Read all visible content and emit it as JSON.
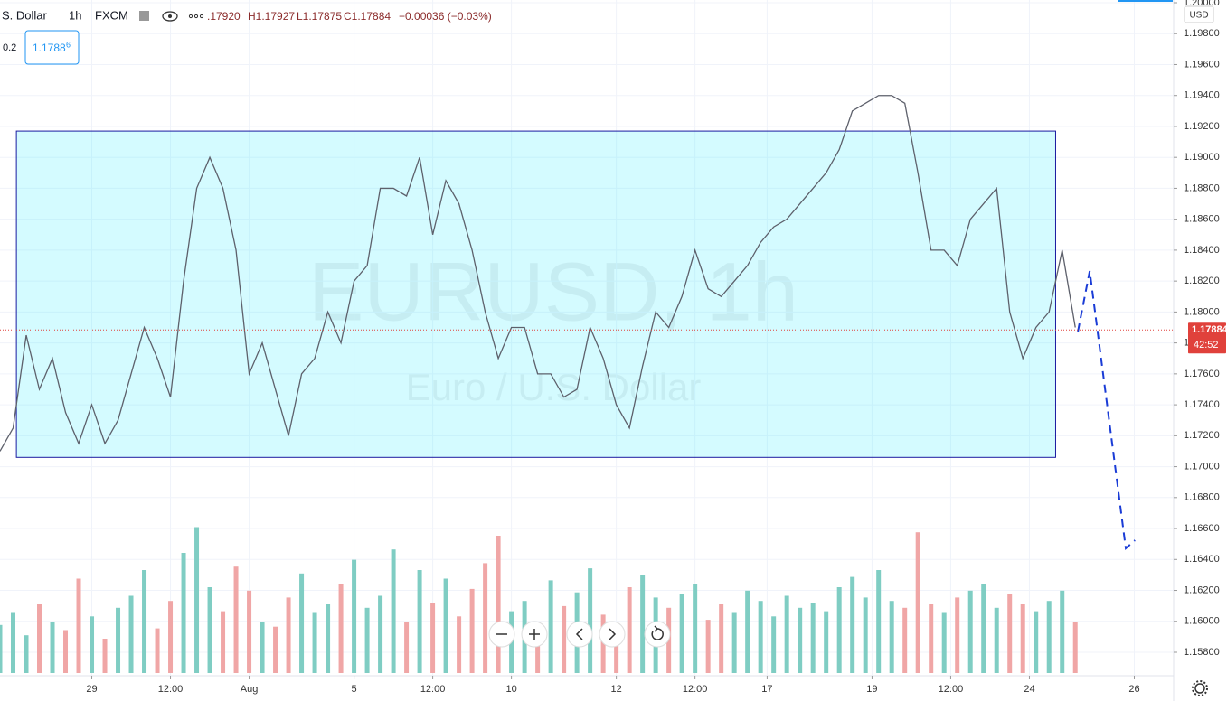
{
  "chart_data": {
    "type": "line",
    "header": {
      "symbol": "S. Dollar",
      "interval": "1h",
      "source": "FXCM",
      "open": ".17920",
      "high": "H1.17927",
      "low": "L1.17875",
      "close": "C1.17884",
      "change": "−0.00036 (−0.03%)",
      "button_price": "1.1788",
      "button_sup": "6",
      "spread": "0.2"
    },
    "watermark": "EURUSD, 1h",
    "watermark_sub": "Euro / U.S. Dollar",
    "currency": "USD",
    "last_price": 1.17884,
    "countdown": "42:52",
    "color": "#5d606b",
    "ylim": [
      1.158,
      1.2
    ],
    "yticks": [
      {
        "value": 1.158,
        "label": "1.15800"
      },
      {
        "value": 1.16,
        "label": "1.16000"
      },
      {
        "value": 1.162,
        "label": "1.16200"
      },
      {
        "value": 1.164,
        "label": "1.16400"
      },
      {
        "value": 1.166,
        "label": "1.16600"
      },
      {
        "value": 1.168,
        "label": "1.16800"
      },
      {
        "value": 1.17,
        "label": "1.17000"
      },
      {
        "value": 1.172,
        "label": "1.17200"
      },
      {
        "value": 1.174,
        "label": "1.17400"
      },
      {
        "value": 1.176,
        "label": "1.17600"
      },
      {
        "value": 1.178,
        "label": "1.17800"
      },
      {
        "value": 1.18,
        "label": "1.18000"
      },
      {
        "value": 1.182,
        "label": "1.18200"
      },
      {
        "value": 1.184,
        "label": "1.18400"
      },
      {
        "value": 1.186,
        "label": "1.18600"
      },
      {
        "value": 1.188,
        "label": "1.18800"
      },
      {
        "value": 1.19,
        "label": "1.19000"
      },
      {
        "value": 1.192,
        "label": "1.19200"
      },
      {
        "value": 1.194,
        "label": "1.19400"
      },
      {
        "value": 1.196,
        "label": "1.19600"
      },
      {
        "value": 1.198,
        "label": "1.19800"
      },
      {
        "value": 1.2,
        "label": "1.20000"
      }
    ],
    "xlim": [
      0,
      179
    ],
    "xticks": [
      {
        "value": 14,
        "label": "29"
      },
      {
        "value": 26,
        "label": "12:00"
      },
      {
        "value": 38,
        "label": "Aug"
      },
      {
        "value": 54,
        "label": "5"
      },
      {
        "value": 66,
        "label": "12:00"
      },
      {
        "value": 78,
        "label": "10"
      },
      {
        "value": 94,
        "label": "12"
      },
      {
        "value": 106,
        "label": "12:00"
      },
      {
        "value": 117,
        "label": "17"
      },
      {
        "value": 133,
        "label": "19"
      },
      {
        "value": 145,
        "label": "12:00"
      },
      {
        "value": 157,
        "label": "24"
      },
      {
        "value": 173,
        "label": "26"
      }
    ],
    "x": [
      0,
      2,
      4,
      6,
      8,
      10,
      12,
      14,
      16,
      18,
      20,
      22,
      24,
      26,
      28,
      30,
      32,
      34,
      36,
      38,
      40,
      42,
      44,
      46,
      48,
      50,
      52,
      54,
      56,
      58,
      60,
      62,
      64,
      66,
      68,
      70,
      72,
      74,
      76,
      78,
      80,
      82,
      84,
      86,
      88,
      90,
      92,
      94,
      96,
      98,
      100,
      102,
      104,
      106,
      108,
      110,
      112,
      114,
      116,
      118,
      120,
      122,
      124,
      126,
      128,
      130,
      132,
      134,
      136,
      138,
      140,
      142,
      144,
      146,
      148,
      150,
      152,
      154,
      156,
      158,
      160,
      162,
      164
    ],
    "series": [
      {
        "name": "EURUSD",
        "values": [
          1.171,
          1.1725,
          1.1785,
          1.175,
          1.177,
          1.1735,
          1.1715,
          1.174,
          1.1715,
          1.173,
          1.176,
          1.179,
          1.177,
          1.1745,
          1.182,
          1.188,
          1.19,
          1.188,
          1.184,
          1.176,
          1.178,
          1.175,
          1.172,
          1.176,
          1.177,
          1.18,
          1.178,
          1.182,
          1.183,
          1.188,
          1.188,
          1.1875,
          1.19,
          1.185,
          1.1885,
          1.187,
          1.184,
          1.18,
          1.177,
          1.179,
          1.179,
          1.176,
          1.176,
          1.1745,
          1.175,
          1.179,
          1.177,
          1.174,
          1.1725,
          1.1765,
          1.18,
          1.179,
          1.181,
          1.184,
          1.1815,
          1.181,
          1.182,
          1.183,
          1.1845,
          1.1855,
          1.186,
          1.187,
          1.188,
          1.189,
          1.1905,
          1.193,
          1.1935,
          1.194,
          1.194,
          1.1935,
          1.189,
          1.184,
          1.184,
          1.183,
          1.186,
          1.187,
          1.188,
          1.18,
          1.177,
          1.179,
          1.18,
          1.184,
          1.179
        ]
      },
      {
        "name": "Volume",
        "up_color": "#7fcdc3",
        "down_color": "#f0a6a6",
        "vlim": [
          0,
          100
        ],
        "values": [
          28,
          35,
          22,
          40,
          30,
          25,
          55,
          33,
          20,
          38,
          45,
          60,
          26,
          42,
          70,
          85,
          50,
          36,
          62,
          48,
          30,
          27,
          44,
          58,
          35,
          40,
          52,
          66,
          38,
          45,
          72,
          30,
          60,
          41,
          55,
          33,
          49,
          64,
          80,
          36,
          42,
          28,
          54,
          39,
          47,
          61,
          34,
          29,
          50,
          57,
          44,
          38,
          46,
          52,
          31,
          40,
          35,
          48,
          42,
          33,
          45,
          38,
          41,
          36,
          50,
          56,
          44,
          60,
          42,
          38,
          82,
          40,
          35,
          44,
          48,
          52,
          38,
          46,
          40,
          36,
          42,
          48,
          30
        ]
      }
    ],
    "box": {
      "x": [
        2.5,
        161
      ],
      "y": [
        1.1706,
        1.1917
      ],
      "color": "#00e5ff"
    },
    "forecast": {
      "x": [
        164.4,
        166.2,
        171.7,
        173.1
      ],
      "y": [
        1.17874,
        1.18265,
        1.16472,
        1.16524
      ],
      "color": "#1a3cd6"
    }
  }
}
